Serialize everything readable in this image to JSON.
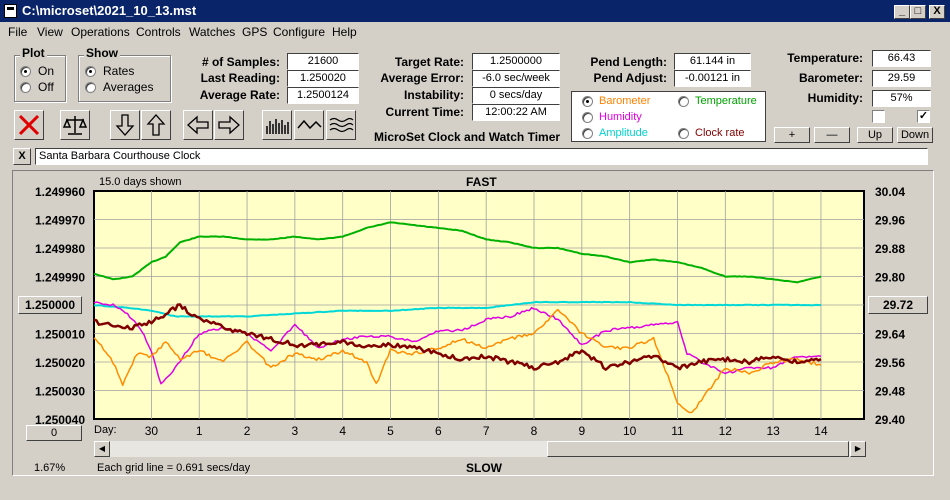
{
  "window": {
    "title": "C:\\microset\\2021_10_13.mst",
    "controls": [
      "_",
      "□",
      "X"
    ]
  },
  "menu": [
    "File",
    "View",
    "Operations",
    "Controls",
    "Watches",
    "GPS",
    "Configure",
    "Help"
  ],
  "plot_group": {
    "title": "Plot",
    "options": [
      "On",
      "Off"
    ],
    "selected": "On"
  },
  "show_group": {
    "title": "Show",
    "options": [
      "Rates",
      "Averages"
    ],
    "selected": "Rates"
  },
  "stats": {
    "samples_label": "# of Samples:",
    "samples_value": "21600",
    "last_label": "Last Reading:",
    "last_value": "1.250020",
    "avg_label": "Average Rate:",
    "avg_value": "1.2500124",
    "target_label": "Target Rate:",
    "target_value": "1.2500000",
    "avgerr_label": "Average Error:",
    "avgerr_value": "-6.0 sec/week",
    "instab_label": "Instability:",
    "instab_value": "0 secs/day",
    "time_label": "Current Time:",
    "time_value": "12:00:22 AM",
    "pendlen_label": "Pend Length:",
    "pendlen_value": "61.144 in",
    "pendadj_label": "Pend Adjust:",
    "pendadj_value": "-0.00121 in",
    "temp_label": "Temperature:",
    "temp_value": "66.43",
    "baro_label": "Barometer:",
    "baro_value": "29.59",
    "hum_label": "Humidity:",
    "hum_value": "57%"
  },
  "app_caption": "MicroSet Clock and Watch Timer",
  "sensor_select": {
    "options": [
      {
        "label": "Barometer",
        "color": "#ff8000",
        "selected": true
      },
      {
        "label": "Temperature",
        "color": "#00a000",
        "selected": false
      },
      {
        "label": "Humidity",
        "color": "#e000e0",
        "selected": false
      },
      {
        "label": "Amplitude",
        "color": "#00d0d0",
        "selected": false
      },
      {
        "label": "Clock rate",
        "color": "#800000",
        "selected": false
      }
    ]
  },
  "toolbar": {
    "icons": [
      "clear-x-icon",
      "balance-scale-icon",
      "arrow-down-icon",
      "arrow-up-icon",
      "arrow-left-icon",
      "arrow-right-icon",
      "histogram-icon",
      "waveform-icon",
      "wavy-lines-icon"
    ]
  },
  "right_buttons": [
    "+",
    "—",
    "Up",
    "Down"
  ],
  "checkbox_right_checked": "✓",
  "clock_name": "Santa Barbara Courthouse Clock",
  "close_x": "X",
  "plot": {
    "top_left": "15.0 days shown",
    "top_center": "FAST",
    "bottom_center": "SLOW",
    "grid_note": "Each grid line = 0.691 secs/day",
    "left_bottom_pct": "1.67%",
    "left_button": "1.250000",
    "right_button": "29.72",
    "zero_button": "0",
    "day_label": "Day:"
  },
  "chart_data": {
    "type": "line",
    "left_axis": {
      "ticks": [
        "1.249960",
        "1.249970",
        "1.249980",
        "1.249990",
        "1.250000",
        "1.250010",
        "1.250020",
        "1.250030",
        "1.250040"
      ],
      "range": [
        1.24996,
        1.25004
      ],
      "inverted": true
    },
    "right_axis": {
      "ticks": [
        "30.04",
        "29.96",
        "29.88",
        "29.80",
        "29.72",
        "29.64",
        "29.56",
        "29.48",
        "29.40"
      ],
      "range": [
        29.4,
        30.04
      ]
    },
    "x_ticks": [
      "30",
      "1",
      "2",
      "3",
      "4",
      "5",
      "6",
      "7",
      "8",
      "9",
      "10",
      "11",
      "12",
      "13",
      "14"
    ],
    "x_range": [
      -1.2,
      14.9
    ],
    "background": "#ffffc8",
    "series": [
      {
        "color": "#00b000",
        "x": [
          -1.2,
          -0.8,
          -0.4,
          0,
          0.3,
          0.6,
          1,
          1.5,
          2,
          2.5,
          3,
          3.5,
          4,
          4.5,
          5,
          5.5,
          6,
          6.5,
          7,
          7.5,
          8,
          8.5,
          9,
          9.5,
          10,
          10.5,
          11,
          11.5,
          12,
          12.5,
          13,
          13.5,
          14
        ],
        "y": [
          1.249989,
          1.249991,
          1.24999,
          1.249985,
          1.249983,
          1.249978,
          1.249976,
          1.249976,
          1.249977,
          1.249977,
          1.249976,
          1.249977,
          1.249976,
          1.249973,
          1.249971,
          1.249972,
          1.249973,
          1.249974,
          1.249977,
          1.249978,
          1.24998,
          1.24998,
          1.249982,
          1.249983,
          1.249985,
          1.249984,
          1.249985,
          1.249987,
          1.24999,
          1.24999,
          1.249991,
          1.249992,
          1.24999
        ]
      },
      {
        "color": "#00d8d8",
        "x": [
          -1.2,
          -0.5,
          0,
          0.5,
          1,
          2,
          3,
          4,
          5,
          6,
          7,
          8,
          9,
          10,
          11,
          12,
          13,
          14
        ],
        "y": [
          1.25,
          1.250001,
          1.250002,
          1.250004,
          1.250004,
          1.250004,
          1.250003,
          1.250002,
          1.250002,
          1.250001,
          1.250001,
          1.249999,
          1.249999,
          1.249999,
          1.25,
          1.25,
          1.25,
          1.25
        ]
      },
      {
        "color": "#e000e0",
        "x": [
          -1.2,
          -0.8,
          -0.5,
          -0.2,
          0,
          0.2,
          0.5,
          1,
          1.5,
          2,
          2.5,
          3,
          3.5,
          4,
          4.5,
          5,
          5.5,
          6,
          6.5,
          7,
          7.5,
          8,
          8.5,
          9,
          9.5,
          10,
          10.5,
          11,
          11.2,
          11.5,
          12,
          12.5,
          13,
          13.5,
          14
        ],
        "y": [
          1.249999,
          1.25,
          1.250003,
          1.250009,
          1.250016,
          1.250028,
          1.250022,
          1.25001,
          1.250008,
          1.25001,
          1.250016,
          1.250007,
          1.250015,
          1.250012,
          1.250011,
          1.250011,
          1.250013,
          1.250009,
          1.250009,
          1.250005,
          1.250004,
          1.250001,
          1.250005,
          1.250014,
          1.250009,
          1.250008,
          1.250007,
          1.250006,
          1.250017,
          1.25002,
          1.250024,
          1.250022,
          1.250022,
          1.250018,
          1.250018
        ]
      },
      {
        "color": "#ff8c00",
        "x": [
          -1.2,
          -0.8,
          -0.6,
          -0.3,
          0,
          0.3,
          0.6,
          1,
          1.5,
          2,
          2.5,
          3,
          3.5,
          4,
          4.5,
          4.7,
          5,
          5.5,
          6,
          6.5,
          7,
          7.5,
          8,
          8.5,
          9,
          9.5,
          10,
          10.5,
          10.8,
          11,
          11.3,
          11.6,
          12,
          12.5,
          13,
          13.5,
          14
        ],
        "y": [
          1.250011,
          1.25002,
          1.250028,
          1.250017,
          1.250018,
          1.250013,
          1.250019,
          1.250016,
          1.25002,
          1.250013,
          1.250022,
          1.250017,
          1.250019,
          1.250016,
          1.25002,
          1.250028,
          1.250016,
          1.250017,
          1.250015,
          1.250012,
          1.250015,
          1.250012,
          1.25001,
          1.250002,
          1.25001,
          1.250015,
          1.250015,
          1.250012,
          1.250025,
          1.250034,
          1.250038,
          1.250031,
          1.250022,
          1.250024,
          1.25002,
          1.250019,
          1.250021
        ]
      },
      {
        "color": "#800000",
        "x": [
          -1.2,
          -0.8,
          -0.4,
          0,
          0.3,
          0.6,
          0.9,
          1.2,
          1.5,
          2,
          2.5,
          3,
          3.5,
          4,
          4.5,
          5,
          5.5,
          6,
          6.5,
          7,
          7.5,
          8,
          8.5,
          9,
          9.5,
          10,
          10.5,
          11,
          11.5,
          12,
          12.5,
          13,
          13.5,
          14
        ],
        "y": [
          1.250006,
          1.250007,
          1.250008,
          1.250006,
          1.250003,
          1.25,
          1.250004,
          1.250006,
          1.250008,
          1.25001,
          1.250012,
          1.250014,
          1.250014,
          1.250013,
          1.250015,
          1.250014,
          1.250015,
          1.250017,
          1.250019,
          1.250018,
          1.25002,
          1.250022,
          1.25002,
          1.250016,
          1.250022,
          1.25002,
          1.250018,
          1.250022,
          1.25002,
          1.250019,
          1.25002,
          1.250018,
          1.25002,
          1.250019
        ]
      }
    ]
  }
}
